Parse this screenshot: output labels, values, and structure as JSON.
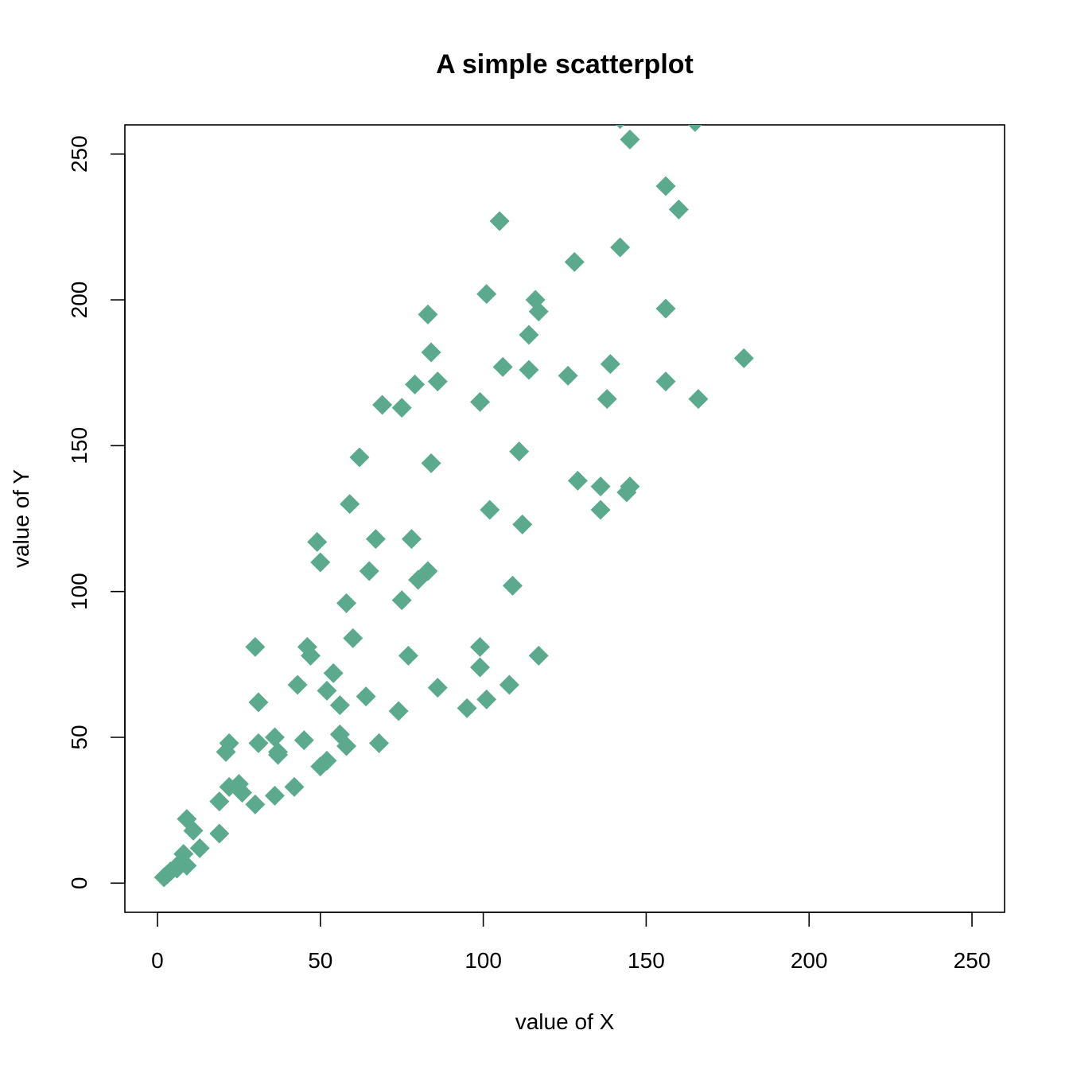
{
  "chart_data": {
    "type": "scatter",
    "title": "A simple scatterplot",
    "xlabel": "value of X",
    "ylabel": "value of Y",
    "xlim": [
      -10,
      260
    ],
    "ylim": [
      -10,
      260
    ],
    "x_ticks": [
      0,
      50,
      100,
      150,
      200,
      250
    ],
    "y_ticks": [
      0,
      50,
      100,
      150,
      200,
      250
    ],
    "grid": false,
    "marker": "diamond",
    "marker_color": "#5BAA8E",
    "points": [
      [
        2,
        2
      ],
      [
        3,
        3
      ],
      [
        4,
        4
      ],
      [
        6,
        5
      ],
      [
        7,
        7
      ],
      [
        8,
        10
      ],
      [
        9,
        6
      ],
      [
        9,
        22
      ],
      [
        11,
        18
      ],
      [
        13,
        12
      ],
      [
        19,
        17
      ],
      [
        19,
        28
      ],
      [
        21,
        45
      ],
      [
        22,
        33
      ],
      [
        22,
        48
      ],
      [
        25,
        34
      ],
      [
        26,
        31
      ],
      [
        30,
        27
      ],
      [
        30,
        81
      ],
      [
        31,
        48
      ],
      [
        31,
        62
      ],
      [
        36,
        30
      ],
      [
        36,
        50
      ],
      [
        37,
        45
      ],
      [
        37,
        44
      ],
      [
        42,
        33
      ],
      [
        43,
        68
      ],
      [
        45,
        49
      ],
      [
        46,
        81
      ],
      [
        47,
        78
      ],
      [
        50,
        40
      ],
      [
        49,
        117
      ],
      [
        50,
        110
      ],
      [
        52,
        42
      ],
      [
        52,
        66
      ],
      [
        54,
        72
      ],
      [
        56,
        61
      ],
      [
        56,
        51
      ],
      [
        58,
        47
      ],
      [
        58,
        96
      ],
      [
        59,
        130
      ],
      [
        60,
        84
      ],
      [
        62,
        146
      ],
      [
        64,
        64
      ],
      [
        65,
        107
      ],
      [
        67,
        118
      ],
      [
        68,
        48
      ],
      [
        69,
        164
      ],
      [
        74,
        59
      ],
      [
        75,
        97
      ],
      [
        75,
        163
      ],
      [
        77,
        78
      ],
      [
        78,
        118
      ],
      [
        79,
        171
      ],
      [
        80,
        104
      ],
      [
        83,
        195
      ],
      [
        83,
        107
      ],
      [
        84,
        182
      ],
      [
        84,
        144
      ],
      [
        86,
        67
      ],
      [
        86,
        172
      ],
      [
        95,
        60
      ],
      [
        99,
        81
      ],
      [
        99,
        74
      ],
      [
        99,
        165
      ],
      [
        101,
        202
      ],
      [
        101,
        63
      ],
      [
        102,
        128
      ],
      [
        105,
        227
      ],
      [
        106,
        177
      ],
      [
        108,
        68
      ],
      [
        109,
        102
      ],
      [
        111,
        148
      ],
      [
        112,
        123
      ],
      [
        114,
        188
      ],
      [
        114,
        176
      ],
      [
        116,
        200
      ],
      [
        117,
        196
      ],
      [
        117,
        78
      ],
      [
        126,
        174
      ],
      [
        128,
        213
      ],
      [
        129,
        138
      ],
      [
        136,
        136
      ],
      [
        136,
        128
      ],
      [
        138,
        166
      ],
      [
        139,
        178
      ],
      [
        142,
        218
      ],
      [
        144,
        134
      ],
      [
        145,
        136
      ],
      [
        145,
        255
      ],
      [
        156,
        197
      ],
      [
        156,
        239
      ],
      [
        156,
        172
      ],
      [
        160,
        231
      ],
      [
        165,
        261
      ],
      [
        166,
        166
      ],
      [
        180,
        180
      ],
      [
        142,
        262
      ]
    ]
  }
}
